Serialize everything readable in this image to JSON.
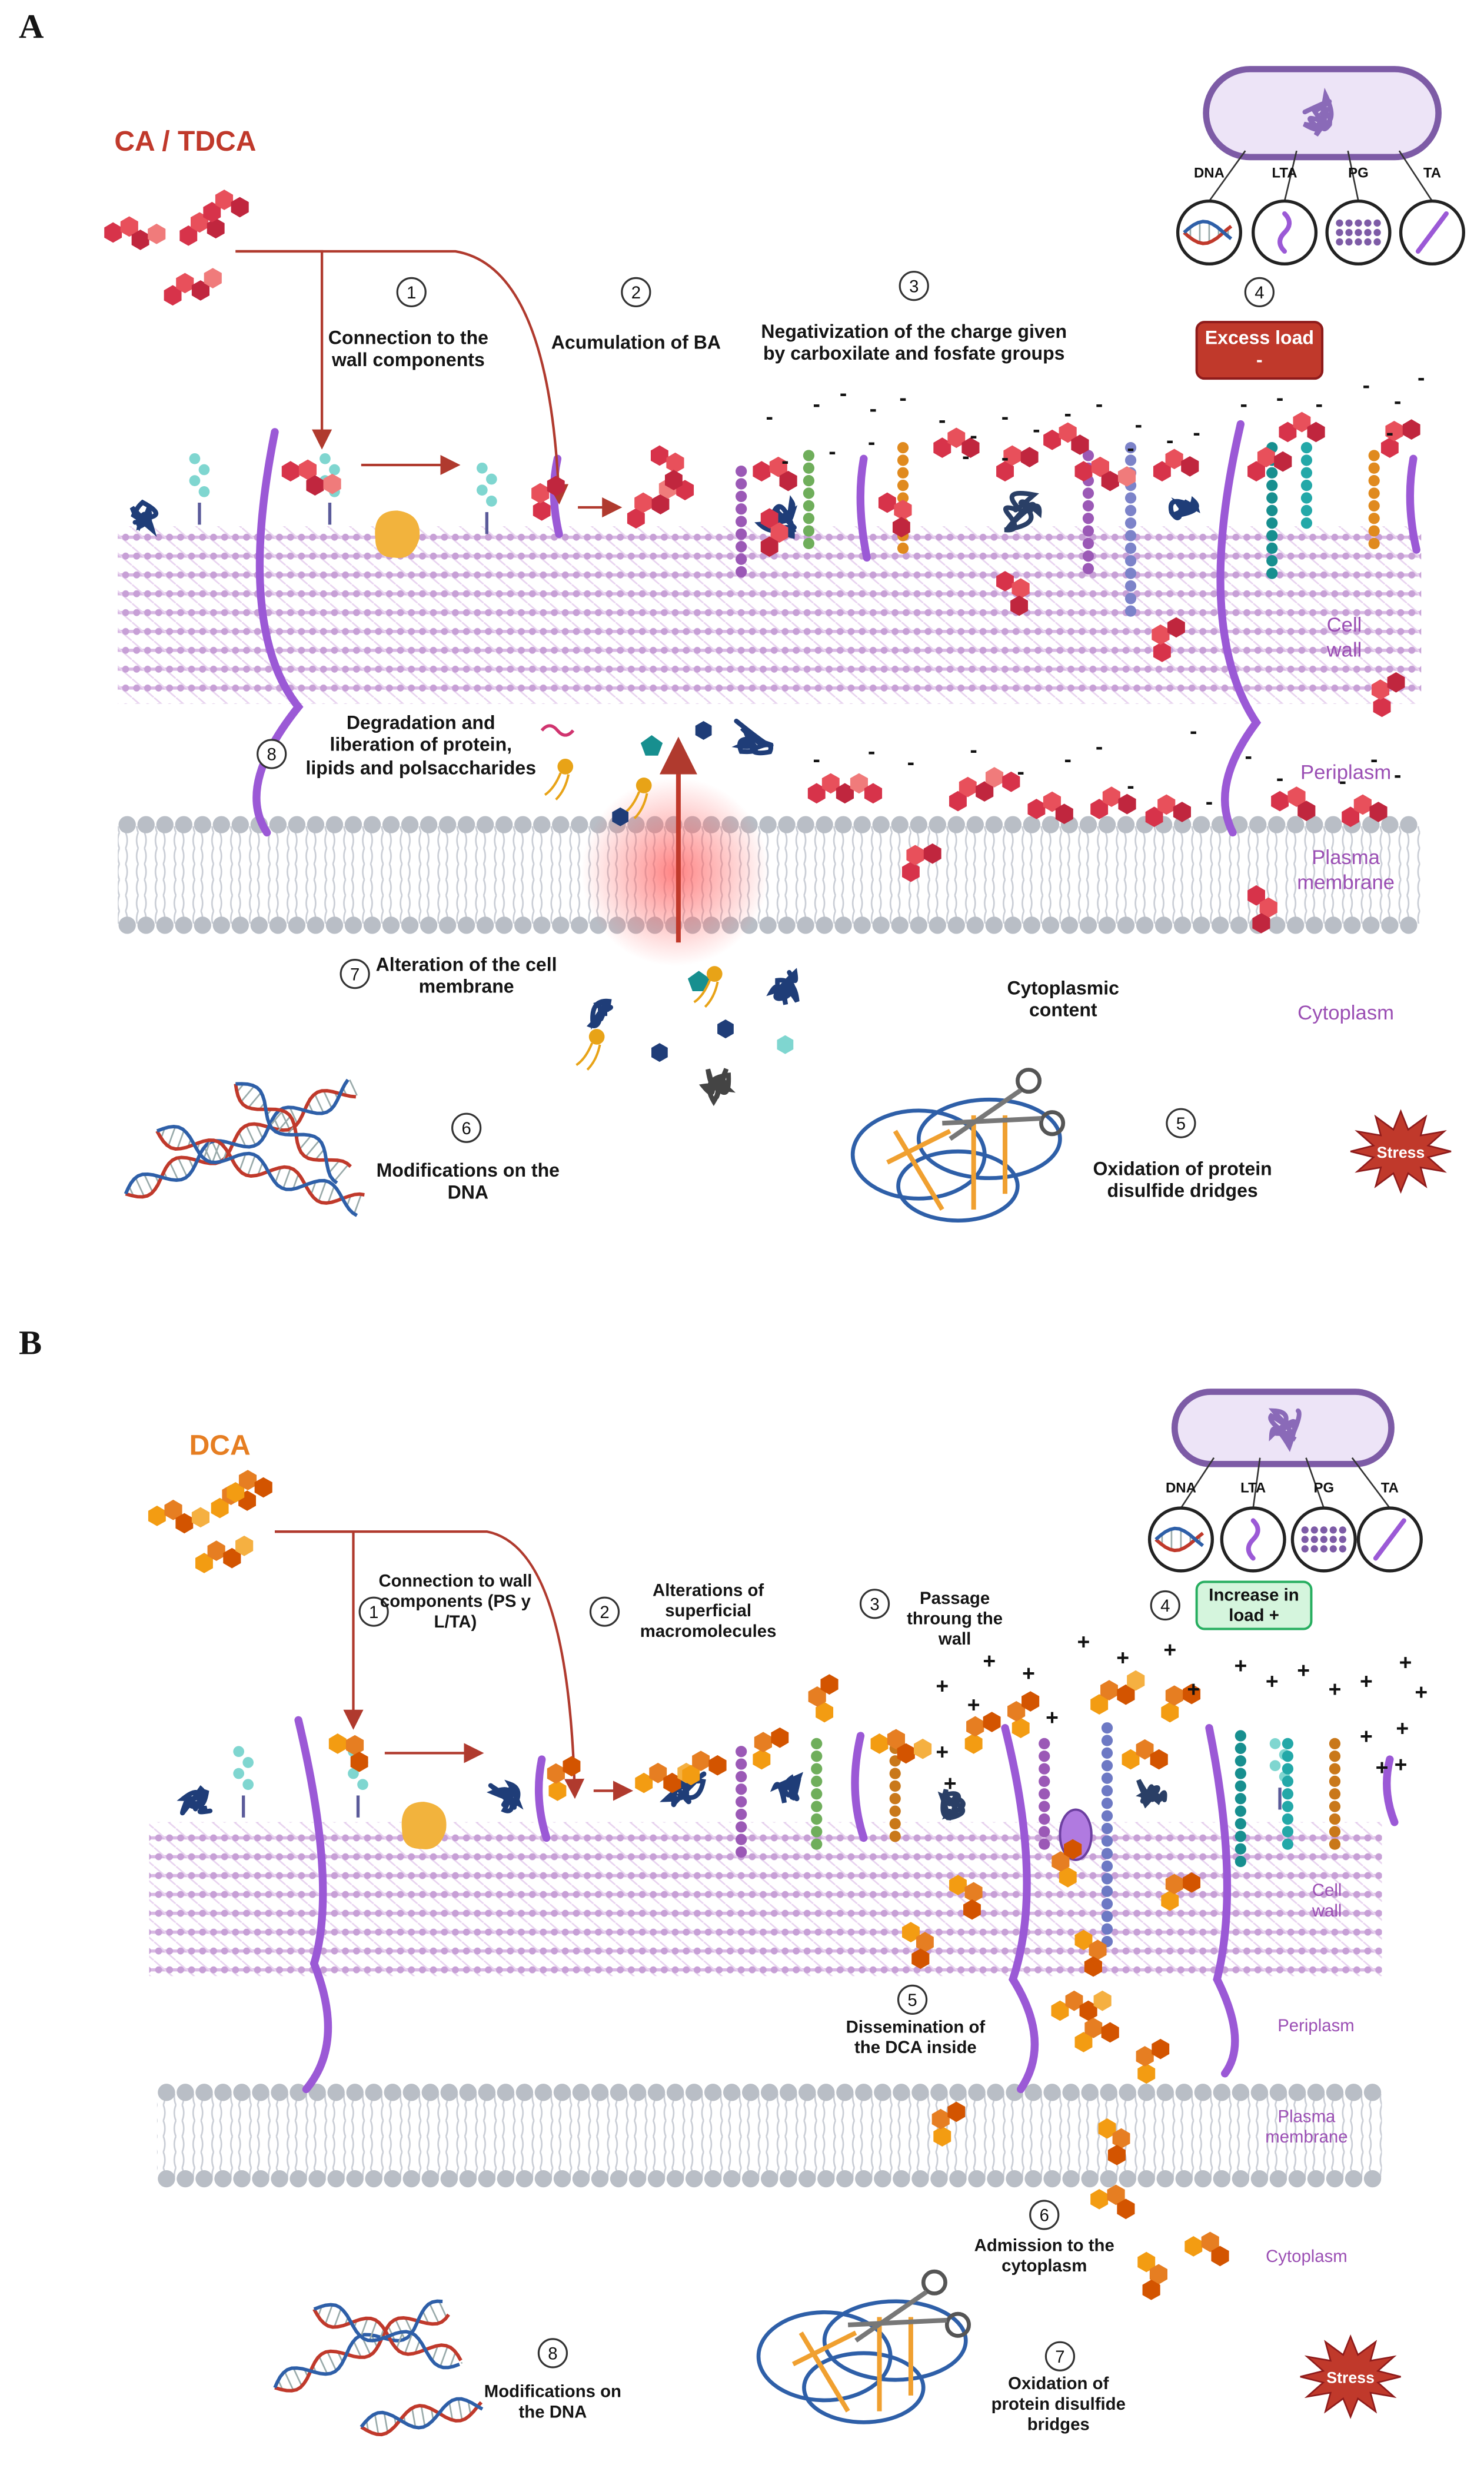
{
  "panels": [
    {
      "letter": "A",
      "agent": "CA / TDCA",
      "inset_labels": [
        "DNA",
        "LTA",
        "PG",
        "TA"
      ],
      "load_box": "Excess load -",
      "charge_symbol": "-",
      "steps": [
        {
          "number": "1",
          "label": "Connection to the wall components"
        },
        {
          "number": "2",
          "label": "Acumulation of BA"
        },
        {
          "number": "3",
          "label": "Negativization of the charge given by carboxilate and fosfate groups"
        },
        {
          "number": "4"
        },
        {
          "number": "5",
          "label": "Oxidation of protein disulfide dridges"
        },
        {
          "number": "6",
          "label": "Modifications on the DNA"
        },
        {
          "number": "7",
          "label": "Alteration of the cell membrane"
        },
        {
          "number": "8",
          "label": "Degradation and liberation of protein, lipids and polsaccharides"
        }
      ],
      "regions": [
        "Cell wall",
        "Periplasm",
        "Plasma membrane",
        "Cytoplasm"
      ],
      "cytoplasmic_content": "Cytoplasmic content",
      "stress": "Stress"
    },
    {
      "letter": "B",
      "agent": "DCA",
      "inset_labels": [
        "DNA",
        "LTA",
        "PG",
        "TA"
      ],
      "load_box": "Increase in load +",
      "charge_symbol": "+",
      "steps": [
        {
          "number": "1",
          "label": "Connection to wall components (PS y L/TA)"
        },
        {
          "number": "2",
          "label": "Alterations of superficial macromolecules"
        },
        {
          "number": "3",
          "label": "Passage throung the wall"
        },
        {
          "number": "4"
        },
        {
          "number": "5",
          "label": "Dissemination of the DCA inside"
        },
        {
          "number": "6",
          "label": "Admission to the cytoplasm"
        },
        {
          "number": "7",
          "label": "Oxidation of protein disulfide bridges"
        },
        {
          "number": "8",
          "label": "Modifications on the DNA"
        }
      ],
      "regions": [
        "Cell wall",
        "Periplasm",
        "Plasma membrane",
        "Cytoplasm"
      ],
      "stress": "Stress"
    }
  ]
}
